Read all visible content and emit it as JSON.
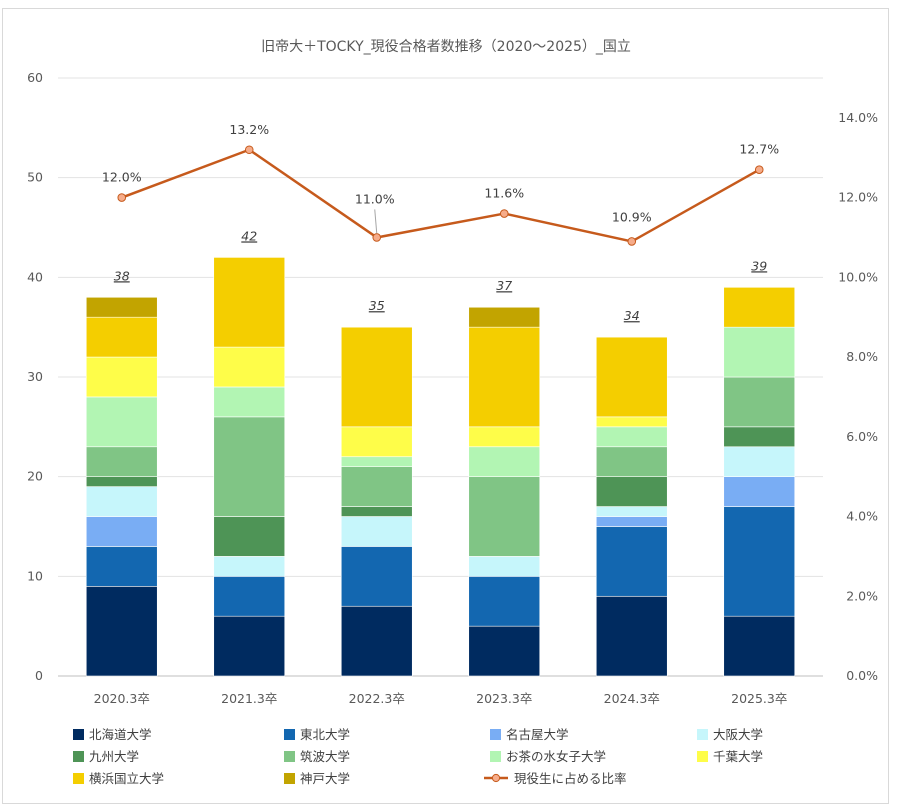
{
  "chart_data": {
    "type": "bar",
    "title": "旧帝大＋TOCKY_現役合格者数推移（2020～2025）_国立",
    "categories": [
      "2020.3卒",
      "2021.3卒",
      "2022.3卒",
      "2023.3卒",
      "2024.3卒",
      "2025.3卒"
    ],
    "ylim": [
      0,
      60
    ],
    "yticks": [
      "0",
      "10",
      "20",
      "30",
      "40",
      "50",
      "60"
    ],
    "y2lim": [
      0,
      15
    ],
    "y2ticks": [
      "0.0%",
      "2.0%",
      "4.0%",
      "6.0%",
      "8.0%",
      "10.0%",
      "12.0%",
      "14.0%"
    ],
    "grid": true,
    "legend_position": "bottom",
    "totals": [
      "38",
      "42",
      "35",
      "37",
      "34",
      "39"
    ],
    "series": [
      {
        "name": "北海道大学",
        "color": "#002b60",
        "values": [
          9,
          6,
          7,
          5,
          8,
          6
        ]
      },
      {
        "name": "東北大学",
        "color": "#1367b0",
        "values": [
          4,
          4,
          6,
          5,
          7,
          11
        ]
      },
      {
        "name": "名古屋大学",
        "color": "#79adf4",
        "values": [
          3,
          0,
          0,
          0,
          1,
          3
        ]
      },
      {
        "name": "大阪大学",
        "color": "#c6f6fb",
        "values": [
          3,
          2,
          3,
          2,
          1,
          3
        ]
      },
      {
        "name": "九州大学",
        "color": "#4e9456",
        "values": [
          1,
          4,
          1,
          0,
          3,
          2
        ]
      },
      {
        "name": "筑波大学",
        "color": "#80c585",
        "values": [
          3,
          10,
          4,
          8,
          3,
          5
        ]
      },
      {
        "name": "お茶の水女子大学",
        "color": "#b2f5b3",
        "values": [
          5,
          3,
          1,
          3,
          2,
          5
        ]
      },
      {
        "name": "千葉大学",
        "color": "#fefd49",
        "values": [
          4,
          4,
          3,
          2,
          1,
          0
        ]
      },
      {
        "name": "横浜国立大学",
        "color": "#f4ce00",
        "values": [
          4,
          9,
          10,
          10,
          8,
          4
        ]
      },
      {
        "name": "神戸大学",
        "color": "#c2a400",
        "values": [
          2,
          0,
          0,
          2,
          0,
          0
        ]
      }
    ],
    "line": {
      "name": "現役生に占める比率",
      "color": "#c65a1c",
      "marker_fill": "#f6ac8a",
      "values": [
        12.0,
        13.2,
        11.0,
        11.6,
        10.9,
        12.7
      ],
      "labels": [
        "12.0%",
        "13.2%",
        "11.0%",
        "11.6%",
        "10.9%",
        "12.7%"
      ]
    }
  }
}
